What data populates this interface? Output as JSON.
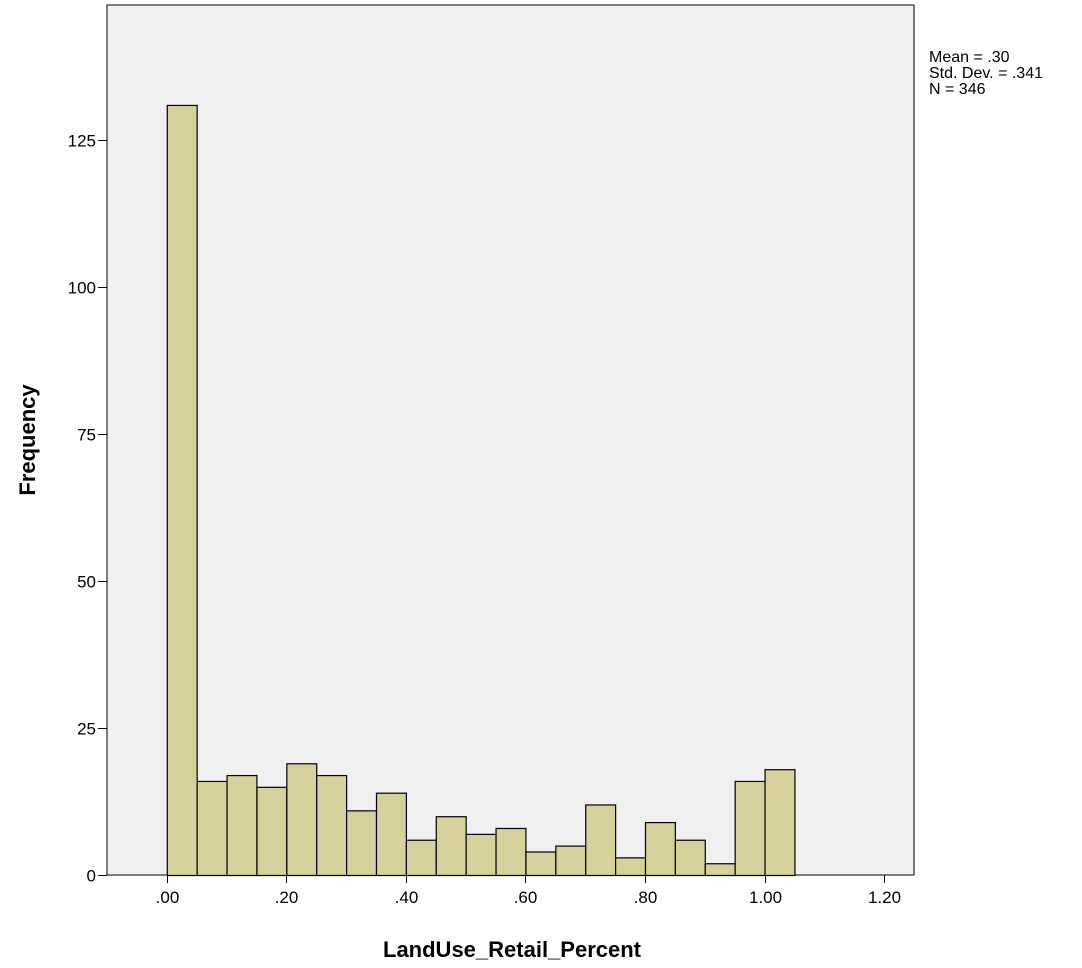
{
  "chart_data": {
    "type": "bar",
    "subtype": "histogram",
    "xlabel": "LandUse_Retail_Percent",
    "ylabel": "Frequency",
    "bin_width": 0.05,
    "bin_start": 0.0,
    "values": [
      131,
      16,
      17,
      15,
      19,
      17,
      11,
      14,
      6,
      10,
      7,
      8,
      4,
      5,
      12,
      3,
      9,
      6,
      2,
      16,
      18
    ],
    "xlim": [
      -0.1,
      1.25
    ],
    "ylim": [
      0,
      148
    ],
    "x_ticks": [
      {
        "value": 0.0,
        "label": ".00"
      },
      {
        "value": 0.2,
        "label": ".20"
      },
      {
        "value": 0.4,
        "label": ".40"
      },
      {
        "value": 0.6,
        "label": ".60"
      },
      {
        "value": 0.8,
        "label": ".80"
      },
      {
        "value": 1.0,
        "label": "1.00"
      },
      {
        "value": 1.2,
        "label": "1.20"
      }
    ],
    "y_ticks": [
      {
        "value": 0,
        "label": "0"
      },
      {
        "value": 25,
        "label": "25"
      },
      {
        "value": 50,
        "label": "50"
      },
      {
        "value": 75,
        "label": "75"
      },
      {
        "value": 100,
        "label": "100"
      },
      {
        "value": 125,
        "label": "125"
      }
    ],
    "grid": false,
    "plot_background": "#f0f0f0",
    "bar_fill": "#d6d09c",
    "bar_stroke": "#000000",
    "stats": {
      "mean": "Mean = .30",
      "std_dev": "Std. Dev. = .341",
      "n": "N = 346"
    }
  }
}
